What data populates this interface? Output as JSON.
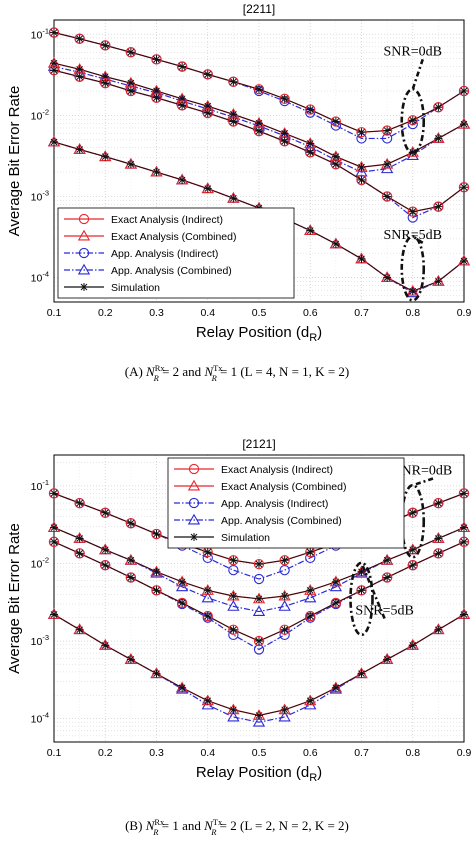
{
  "chart_data": [
    {
      "type": "line",
      "title": "[2211]",
      "xlabel": "Relay Position (d",
      "xlabel_sub": "R",
      "xlabel_end": ")",
      "ylabel": "Average Bit Error Rate",
      "yscale": "log",
      "xlim": [
        0.1,
        0.9
      ],
      "ylim": [
        5e-05,
        0.15
      ],
      "grid": true,
      "xticks": [
        "0.1",
        "0.2",
        "0.3",
        "0.4",
        "0.5",
        "0.6",
        "0.7",
        "0.8",
        "0.9"
      ],
      "yticks": [
        {
          "base": "10",
          "exp": "-1",
          "v": 0.1
        },
        {
          "base": "10",
          "exp": "-2",
          "v": 0.01
        },
        {
          "base": "10",
          "exp": "-3",
          "v": 0.001
        },
        {
          "base": "10",
          "exp": "-4",
          "v": 0.0001
        }
      ],
      "legend_position": "bottom-left",
      "legend": [
        {
          "label": "Exact Analysis (Indirect)",
          "color": "#e8262c",
          "dash": "solid",
          "marker": "circle"
        },
        {
          "label": "Exact Analysis (Combined)",
          "color": "#e8262c",
          "dash": "solid",
          "marker": "triangle"
        },
        {
          "label": "App. Analysis (Indirect)",
          "color": "#2a2ad8",
          "dash": "dashdot",
          "marker": "circle"
        },
        {
          "label": "App. Analysis (Combined)",
          "color": "#2a2ad8",
          "dash": "dashdot",
          "marker": "triangle"
        },
        {
          "label": "Simulation",
          "color": "#111111",
          "dash": "solid",
          "marker": "star"
        }
      ],
      "x": [
        0.1,
        0.15,
        0.2,
        0.25,
        0.3,
        0.35,
        0.4,
        0.45,
        0.5,
        0.55,
        0.6,
        0.65,
        0.7,
        0.75,
        0.8,
        0.85,
        0.9
      ],
      "groups": [
        {
          "exact": [
            0.105,
            0.088,
            0.073,
            0.06,
            0.049,
            0.04,
            0.032,
            0.026,
            0.021,
            0.016,
            0.0118,
            0.0084,
            0.0062,
            0.0065,
            0.0087,
            0.0126,
            0.02
          ],
          "app": [
            0.105,
            0.088,
            0.073,
            0.06,
            0.049,
            0.04,
            0.032,
            0.026,
            0.02,
            0.015,
            0.0108,
            0.0075,
            0.0052,
            0.0052,
            0.0078,
            0.0126,
            0.02
          ]
        },
        {
          "exact": [
            0.044,
            0.037,
            0.03,
            0.025,
            0.02,
            0.016,
            0.013,
            0.0103,
            0.008,
            0.006,
            0.0045,
            0.0031,
            0.0023,
            0.0025,
            0.0035,
            0.0052,
            0.0078
          ],
          "app": [
            0.04,
            0.034,
            0.028,
            0.023,
            0.019,
            0.015,
            0.012,
            0.0095,
            0.0074,
            0.0056,
            0.0041,
            0.0028,
            0.002,
            0.0022,
            0.0032,
            0.0052,
            0.0078
          ]
        },
        {
          "exact": [
            0.036,
            0.03,
            0.025,
            0.02,
            0.0165,
            0.0133,
            0.0107,
            0.0084,
            0.0064,
            0.0048,
            0.0035,
            0.0025,
            0.0016,
            0.001,
            0.00065,
            0.00075,
            0.0013
          ],
          "app": [
            0.036,
            0.03,
            0.025,
            0.02,
            0.0165,
            0.0133,
            0.0107,
            0.0084,
            0.0064,
            0.0048,
            0.0035,
            0.0025,
            0.0016,
            0.001,
            0.00055,
            0.00075,
            0.0013
          ]
        },
        {
          "exact": [
            0.0047,
            0.0038,
            0.0031,
            0.0025,
            0.002,
            0.0016,
            0.00125,
            0.00095,
            0.00072,
            0.00053,
            0.00038,
            0.00026,
            0.00017,
            0.0001,
            6.8e-05,
            9e-05,
            0.00016
          ],
          "app": [
            0.0047,
            0.0038,
            0.0031,
            0.0025,
            0.002,
            0.0016,
            0.00125,
            0.00095,
            0.00072,
            0.00053,
            0.00038,
            0.00026,
            0.00017,
            0.0001,
            6.5e-05,
            9e-05,
            0.00016
          ]
        }
      ],
      "annotations": [
        {
          "text": "SNR=0dB",
          "at": [
            0.8,
            0.055
          ],
          "ellipse": [
            0.8,
            0.0085
          ]
        },
        {
          "text": "SNR=5dB",
          "at": [
            0.8,
            0.0003
          ],
          "ellipse": [
            0.8,
            0.00013
          ]
        }
      ],
      "caption": {
        "prefix": "(A)  ",
        "n1": "N",
        "n1sup": "Rx",
        "n1sub": "R",
        "mid": " = 2 and ",
        "n2": "N",
        "n2sup": "Tx",
        "n2sub": "R",
        "suffix": " = 1 (L = 4, N = 1, K = 2)"
      }
    },
    {
      "type": "line",
      "title": "[2121]",
      "xlabel": "Relay Position (d",
      "xlabel_sub": "R",
      "xlabel_end": ")",
      "ylabel": "Average Bit Error Rate",
      "yscale": "log",
      "xlim": [
        0.1,
        0.9
      ],
      "ylim": [
        5e-05,
        0.25
      ],
      "grid": true,
      "xticks": [
        "0.1",
        "0.2",
        "0.3",
        "0.4",
        "0.5",
        "0.6",
        "0.7",
        "0.8",
        "0.9"
      ],
      "yticks": [
        {
          "base": "10",
          "exp": "-1",
          "v": 0.1
        },
        {
          "base": "10",
          "exp": "-2",
          "v": 0.01
        },
        {
          "base": "10",
          "exp": "-3",
          "v": 0.001
        },
        {
          "base": "10",
          "exp": "-4",
          "v": 0.0001
        }
      ],
      "legend_position": "top-center",
      "legend": [
        {
          "label": "Exact Analysis (Indirect)",
          "color": "#e8262c",
          "dash": "solid",
          "marker": "circle"
        },
        {
          "label": "Exact Analysis (Combined)",
          "color": "#e8262c",
          "dash": "solid",
          "marker": "triangle"
        },
        {
          "label": "App. Analysis (Indirect)",
          "color": "#2a2ad8",
          "dash": "dashdot",
          "marker": "circle"
        },
        {
          "label": "App. Analysis (Combined)",
          "color": "#2a2ad8",
          "dash": "dashdot",
          "marker": "triangle"
        },
        {
          "label": "Simulation",
          "color": "#111111",
          "dash": "solid",
          "marker": "star"
        }
      ],
      "x": [
        0.1,
        0.15,
        0.2,
        0.25,
        0.3,
        0.35,
        0.4,
        0.45,
        0.5,
        0.55,
        0.6,
        0.65,
        0.7,
        0.75,
        0.8,
        0.85,
        0.9
      ],
      "groups": [
        {
          "exact": [
            0.08,
            0.06,
            0.045,
            0.033,
            0.024,
            0.018,
            0.014,
            0.011,
            0.0098,
            0.011,
            0.014,
            0.018,
            0.024,
            0.033,
            0.045,
            0.06,
            0.08
          ],
          "app": [
            0.08,
            0.06,
            0.045,
            0.033,
            0.024,
            0.017,
            0.0118,
            0.0082,
            0.0063,
            0.0082,
            0.0118,
            0.017,
            0.024,
            0.033,
            0.045,
            0.06,
            0.08
          ]
        },
        {
          "exact": [
            0.029,
            0.021,
            0.015,
            0.011,
            0.0078,
            0.0058,
            0.0045,
            0.0038,
            0.0035,
            0.0038,
            0.0045,
            0.0058,
            0.0078,
            0.011,
            0.015,
            0.021,
            0.029
          ],
          "app": [
            0.029,
            0.021,
            0.015,
            0.011,
            0.0075,
            0.005,
            0.0036,
            0.0028,
            0.0024,
            0.0028,
            0.0036,
            0.005,
            0.0075,
            0.011,
            0.015,
            0.021,
            0.029
          ]
        },
        {
          "exact": [
            0.019,
            0.0135,
            0.0095,
            0.0066,
            0.0045,
            0.0031,
            0.0021,
            0.0014,
            0.001,
            0.0014,
            0.0021,
            0.0031,
            0.0045,
            0.0066,
            0.0095,
            0.0135,
            0.019
          ],
          "app": [
            0.019,
            0.0135,
            0.0095,
            0.0066,
            0.0045,
            0.003,
            0.002,
            0.0012,
            0.00078,
            0.0012,
            0.002,
            0.003,
            0.0045,
            0.0066,
            0.0095,
            0.0135,
            0.019
          ]
        },
        {
          "exact": [
            0.0022,
            0.0014,
            0.00088,
            0.00058,
            0.00038,
            0.00025,
            0.00017,
            0.00013,
            0.00011,
            0.00013,
            0.00017,
            0.00025,
            0.00038,
            0.00058,
            0.00088,
            0.0014,
            0.0022
          ],
          "app": [
            0.0022,
            0.0014,
            0.00088,
            0.00058,
            0.00038,
            0.00024,
            0.00015,
            0.000105,
            9e-05,
            0.000105,
            0.00015,
            0.00024,
            0.00038,
            0.00058,
            0.00088,
            0.0014,
            0.0022
          ]
        }
      ],
      "annotations": [
        {
          "text": "SNR=0dB",
          "at": [
            0.82,
            0.14
          ],
          "ellipse": [
            0.8,
            0.035
          ]
        },
        {
          "text": "SNR=5dB",
          "at": [
            0.745,
            0.0022
          ],
          "ellipse": [
            0.7,
            0.0035
          ]
        }
      ],
      "caption": {
        "prefix": "(B)  ",
        "n1": "N",
        "n1sup": "Rx",
        "n1sub": "R",
        "mid": " = 1 and ",
        "n2": "N",
        "n2sup": "Tx",
        "n2sub": "R",
        "suffix": " = 2 (L = 2, N = 2, K = 2)"
      }
    }
  ]
}
